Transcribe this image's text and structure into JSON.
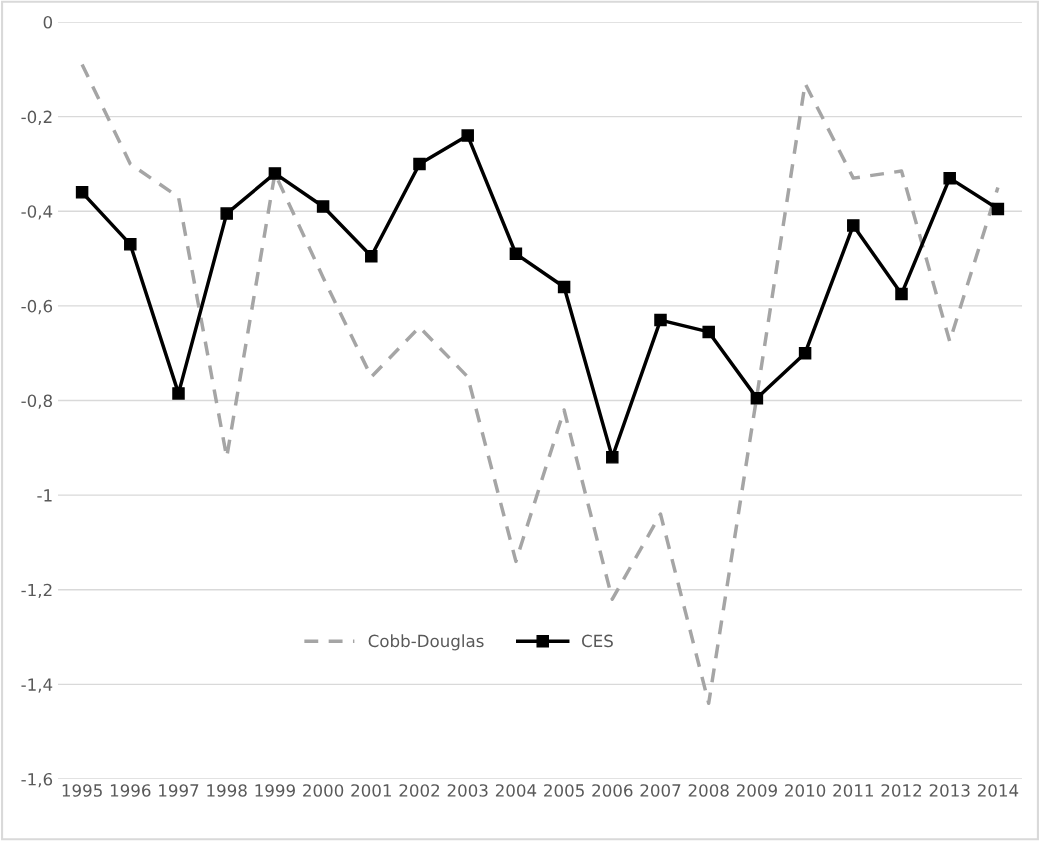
{
  "chart_data": {
    "type": "line",
    "categories": [
      "1995",
      "1996",
      "1997",
      "1998",
      "1999",
      "2000",
      "2001",
      "2002",
      "2003",
      "2004",
      "2005",
      "2006",
      "2007",
      "2008",
      "2009",
      "2010",
      "2011",
      "2012",
      "2013",
      "2014"
    ],
    "series": [
      {
        "name": "Cobb-Douglas",
        "color": "#a5a5a5",
        "line_style": "dashed",
        "marker": "none",
        "values": [
          -0.09,
          -0.3,
          -0.37,
          -0.92,
          -0.32,
          -0.54,
          -0.75,
          -0.645,
          -0.75,
          -1.14,
          -0.82,
          -1.22,
          -1.04,
          -1.44,
          -0.79,
          -0.13,
          -0.33,
          -0.315,
          -0.675,
          -0.35
        ]
      },
      {
        "name": "CES",
        "color": "#000000",
        "line_style": "solid",
        "marker": "square",
        "values": [
          -0.36,
          -0.47,
          -0.785,
          -0.405,
          -0.32,
          -0.39,
          -0.495,
          -0.3,
          -0.24,
          -0.49,
          -0.56,
          -0.92,
          -0.63,
          -0.655,
          -0.795,
          -0.7,
          -0.43,
          -0.575,
          -0.33,
          -0.395
        ]
      }
    ],
    "ylim": [
      -1.6,
      0
    ],
    "yticks": [
      {
        "value": 0,
        "label": "0"
      },
      {
        "value": -0.2,
        "label": "-0,2"
      },
      {
        "value": -0.4,
        "label": "-0,4"
      },
      {
        "value": -0.6,
        "label": "-0,6"
      },
      {
        "value": -0.8,
        "label": "-0,8"
      },
      {
        "value": -1,
        "label": "-1"
      },
      {
        "value": -1.2,
        "label": "-1,2"
      },
      {
        "value": -1.4,
        "label": "-1,4"
      },
      {
        "value": -1.6,
        "label": "-1,6"
      }
    ],
    "grid": "y",
    "legend": "lower left"
  }
}
